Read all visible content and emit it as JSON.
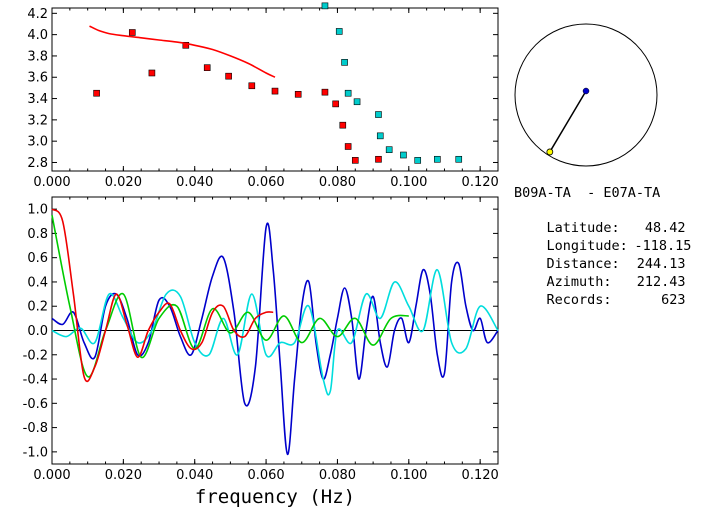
{
  "info": {
    "title": "B09A-TA  - E07A-TA",
    "rows": [
      {
        "label": "Latitude:",
        "value": "48.42"
      },
      {
        "label": "Longitude:",
        "value": "-118.15"
      },
      {
        "label": "Distance:",
        "value": "244.13"
      },
      {
        "label": "Azimuth:",
        "value": "212.43"
      },
      {
        "label": "Records:",
        "value": "623"
      }
    ]
  },
  "chart_data": [
    {
      "type": "scatter",
      "name": "top-dispersion-plot",
      "xlim": [
        0.0,
        0.125
      ],
      "ylim": [
        2.72,
        4.25
      ],
      "xticks": [
        "0.000",
        "0.020",
        "0.040",
        "0.060",
        "0.080",
        "0.100",
        "0.120"
      ],
      "xtick_values": [
        0.0,
        0.02,
        0.04,
        0.06,
        0.08,
        0.1,
        0.12
      ],
      "yticks": [
        "2.8",
        "3.0",
        "3.2",
        "3.4",
        "3.6",
        "3.8",
        "4.0",
        "4.2"
      ],
      "ytick_values": [
        2.8,
        3.0,
        3.2,
        3.4,
        3.6,
        3.8,
        4.0,
        4.2
      ],
      "series": [
        {
          "kind": "squares",
          "color": "#ff0000",
          "x": [
            0.0125,
            0.0225,
            0.028,
            0.0375,
            0.0435,
            0.0495,
            0.056,
            0.0625,
            0.069,
            0.0765,
            0.0795,
            0.0815,
            0.083,
            0.085,
            0.0915
          ],
          "y": [
            3.45,
            4.02,
            3.64,
            3.9,
            3.69,
            3.61,
            3.52,
            3.47,
            3.44,
            3.46,
            3.35,
            3.15,
            2.95,
            2.82,
            2.83
          ]
        },
        {
          "kind": "squares",
          "color": "#00cccc",
          "x": [
            0.0765,
            0.0805,
            0.082,
            0.083,
            0.0855,
            0.0915,
            0.092,
            0.0945,
            0.0985,
            0.1025,
            0.108,
            0.114
          ],
          "y": [
            4.27,
            4.03,
            3.74,
            3.45,
            3.37,
            3.25,
            3.05,
            2.92,
            2.87,
            2.82,
            2.83,
            2.83
          ]
        },
        {
          "kind": "line",
          "color": "#ff0000",
          "x": [
            0.0105,
            0.013,
            0.016,
            0.02,
            0.025,
            0.03,
            0.035,
            0.04,
            0.045,
            0.05,
            0.055,
            0.06,
            0.0625
          ],
          "y": [
            4.08,
            4.04,
            4.01,
            3.99,
            3.97,
            3.95,
            3.93,
            3.9,
            3.86,
            3.8,
            3.73,
            3.64,
            3.6
          ]
        }
      ]
    },
    {
      "type": "line",
      "name": "bottom-coherency-plot",
      "xlabel": "frequency (Hz)",
      "xlim": [
        0.0,
        0.125
      ],
      "ylim": [
        -1.1,
        1.1
      ],
      "xticks": [
        "0.000",
        "0.020",
        "0.040",
        "0.060",
        "0.080",
        "0.100",
        "0.120"
      ],
      "xtick_values": [
        0.0,
        0.02,
        0.04,
        0.06,
        0.08,
        0.1,
        0.12
      ],
      "yticks": [
        "1.0",
        "0.8",
        "0.6",
        "0.4",
        "0.2",
        "0.0",
        "-0.2",
        "-0.4",
        "-0.6",
        "-0.8",
        "-1.0"
      ],
      "ytick_values": [
        1.0,
        0.8,
        0.6,
        0.4,
        0.2,
        0.0,
        -0.2,
        -0.4,
        -0.6,
        -0.8,
        -1.0
      ],
      "series": [
        {
          "color": "#0000cc",
          "x": [
            0,
            0.003,
            0.006,
            0.009,
            0.012,
            0.015,
            0.018,
            0.021,
            0.024,
            0.027,
            0.03,
            0.033,
            0.036,
            0.039,
            0.042,
            0.045,
            0.048,
            0.051,
            0.054,
            0.057,
            0.06,
            0.062,
            0.064,
            0.066,
            0.068,
            0.07,
            0.072,
            0.074,
            0.076,
            0.078,
            0.08,
            0.082,
            0.084,
            0.086,
            0.088,
            0.09,
            0.092,
            0.094,
            0.096,
            0.098,
            0.1,
            0.102,
            0.104,
            0.106,
            0.108,
            0.11,
            0.112,
            0.114,
            0.116,
            0.118,
            0.12,
            0.122,
            0.125
          ],
          "y": [
            0.1,
            0.05,
            0.15,
            -0.1,
            -0.22,
            0.2,
            0.3,
            0.1,
            -0.2,
            -0.1,
            0.25,
            0.2,
            -0.05,
            -0.2,
            0.1,
            0.45,
            0.6,
            0.15,
            -0.6,
            -0.3,
            0.85,
            0.5,
            -0.3,
            -1.02,
            -0.4,
            0.2,
            0.4,
            -0.1,
            -0.4,
            -0.2,
            0.1,
            0.35,
            0.1,
            -0.4,
            0.0,
            0.28,
            -0.1,
            -0.3,
            0.0,
            0.1,
            -0.1,
            0.2,
            0.5,
            0.3,
            -0.2,
            -0.35,
            0.4,
            0.55,
            0.2,
            0.0,
            0.1,
            -0.1,
            0.0
          ]
        },
        {
          "color": "#00dddd",
          "x": [
            0,
            0.004,
            0.008,
            0.012,
            0.016,
            0.02,
            0.024,
            0.028,
            0.032,
            0.036,
            0.04,
            0.044,
            0.048,
            0.052,
            0.056,
            0.06,
            0.064,
            0.068,
            0.072,
            0.076,
            0.078,
            0.08,
            0.084,
            0.088,
            0.092,
            0.096,
            0.1,
            0.104,
            0.108,
            0.112,
            0.116,
            0.12,
            0.125
          ],
          "y": [
            0.0,
            -0.05,
            0.02,
            -0.1,
            0.3,
            0.1,
            -0.1,
            0.0,
            0.3,
            0.28,
            -0.1,
            -0.2,
            0.1,
            -0.2,
            0.3,
            -0.2,
            -0.1,
            -0.1,
            0.2,
            -0.4,
            -0.5,
            0.0,
            -0.1,
            0.3,
            0.1,
            0.4,
            0.2,
            0.0,
            0.5,
            -0.1,
            -0.15,
            0.2,
            0.0
          ]
        },
        {
          "color": "#00cc00",
          "x": [
            0,
            0.005,
            0.01,
            0.015,
            0.02,
            0.025,
            0.03,
            0.035,
            0.04,
            0.045,
            0.05,
            0.055,
            0.06,
            0.065,
            0.07,
            0.075,
            0.08,
            0.085,
            0.09,
            0.095,
            0.1
          ],
          "y": [
            0.95,
            0.2,
            -0.38,
            0.0,
            0.3,
            -0.22,
            0.1,
            0.2,
            -0.15,
            0.18,
            -0.02,
            0.15,
            -0.08,
            0.12,
            -0.1,
            0.1,
            -0.05,
            0.1,
            -0.12,
            0.1,
            0.12
          ]
        },
        {
          "color": "#ee0000",
          "x": [
            0,
            0.003,
            0.006,
            0.009,
            0.012,
            0.015,
            0.018,
            0.021,
            0.024,
            0.027,
            0.03,
            0.033,
            0.036,
            0.039,
            0.042,
            0.045,
            0.048,
            0.051,
            0.054,
            0.057,
            0.06,
            0.062
          ],
          "y": [
            1.0,
            0.9,
            0.3,
            -0.38,
            -0.3,
            0.0,
            0.3,
            0.05,
            -0.22,
            0.0,
            0.15,
            0.22,
            0.0,
            -0.15,
            -0.1,
            0.15,
            0.2,
            0.0,
            -0.05,
            0.1,
            0.15,
            0.15
          ]
        }
      ]
    }
  ],
  "map": {
    "stations": [
      {
        "color": "#0000cc",
        "role": "center"
      },
      {
        "color": "#ffff00",
        "role": "edge"
      }
    ],
    "azimuth_deg": 212.43
  }
}
